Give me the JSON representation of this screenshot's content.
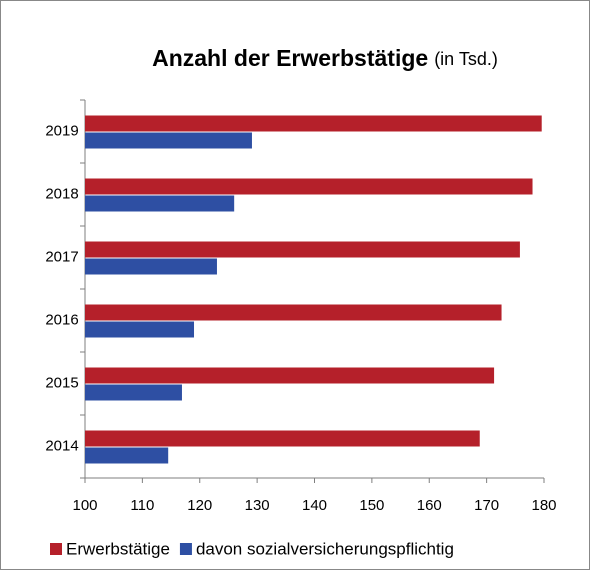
{
  "chart_data": {
    "type": "hbar",
    "title": "Anzahl der Erwerbstätige",
    "subtitle": "(in Tsd.)",
    "categories": [
      "2014",
      "2015",
      "2016",
      "2017",
      "2018",
      "2019"
    ],
    "series": [
      {
        "name": "Erwerbstätige",
        "color": "#b5202a",
        "values": [
          168.8,
          171.3,
          172.6,
          175.8,
          178.0,
          179.6
        ]
      },
      {
        "name": "davon sozialversicherungspflichtig",
        "color": "#2e4fa3",
        "values": [
          114.5,
          116.9,
          119.0,
          123.0,
          126.0,
          129.1
        ]
      }
    ],
    "xlim": [
      100,
      180
    ],
    "xticks": [
      100,
      110,
      120,
      130,
      140,
      150,
      160,
      170,
      180
    ],
    "legend": "bottom"
  }
}
